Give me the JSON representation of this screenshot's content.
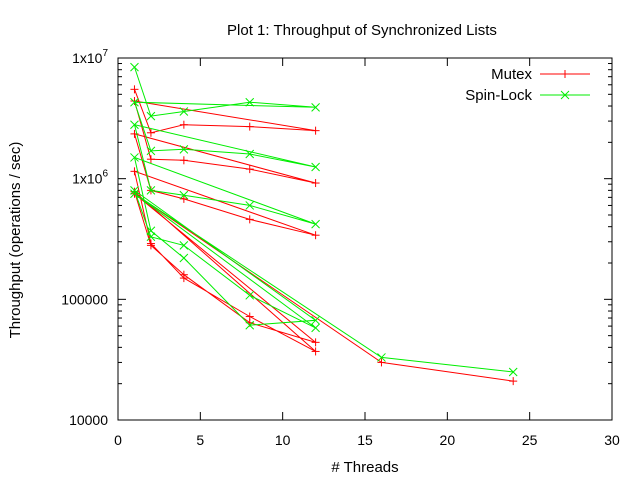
{
  "chart_data": {
    "type": "line",
    "title": "Plot 1: Throughput of Synchronized Lists",
    "xlabel": "# Threads",
    "ylabel": "Throughput (operations / sec)",
    "xlim": [
      0,
      30
    ],
    "ylim": [
      10000,
      10000000
    ],
    "yscale": "log",
    "xticks": [
      0,
      5,
      10,
      15,
      20,
      25,
      30
    ],
    "yticks": [
      {
        "value": 10000,
        "label": "10000"
      },
      {
        "value": 100000,
        "label": "100000"
      },
      {
        "value": 1000000,
        "label": "1x10^6"
      },
      {
        "value": 10000000,
        "label": "1x10^7"
      }
    ],
    "grid": false,
    "legend_position": "top-right",
    "series": [
      {
        "name": "Mutex",
        "color": "#ff0000",
        "marker": "plus",
        "x": [
          1,
          2,
          4,
          8,
          12,
          1,
          2,
          4,
          8,
          12,
          1,
          2,
          4,
          8,
          12,
          1,
          2,
          4,
          8,
          12,
          1,
          2,
          4,
          8,
          12,
          1,
          16,
          24
        ],
        "y": [
          5500000,
          2400000,
          2800000,
          2700000,
          2500000,
          4400000,
          1450000,
          1420000,
          1200000,
          920000,
          2350000,
          800000,
          680000,
          460000,
          340000,
          1150000,
          290000,
          150000,
          72000,
          37000,
          780000,
          280000,
          160000,
          64000,
          44000,
          750000,
          30000,
          21000
        ]
      },
      {
        "name": "Spin-Lock",
        "color": "#00ee00",
        "marker": "cross",
        "x": [
          1,
          2,
          4,
          8,
          12,
          1,
          2,
          4,
          8,
          12,
          1,
          2,
          4,
          8,
          12,
          1,
          2,
          4,
          8,
          12,
          1,
          2,
          4,
          8,
          12,
          1,
          16,
          24
        ],
        "y": [
          8400000,
          3300000,
          3600000,
          4300000,
          3900000,
          4300000,
          1700000,
          1750000,
          1600000,
          1250000,
          2800000,
          800000,
          730000,
          600000,
          420000,
          1500000,
          370000,
          220000,
          61000,
          67000,
          800000,
          330000,
          280000,
          108000,
          58000,
          750000,
          33000,
          25000
        ]
      }
    ]
  }
}
